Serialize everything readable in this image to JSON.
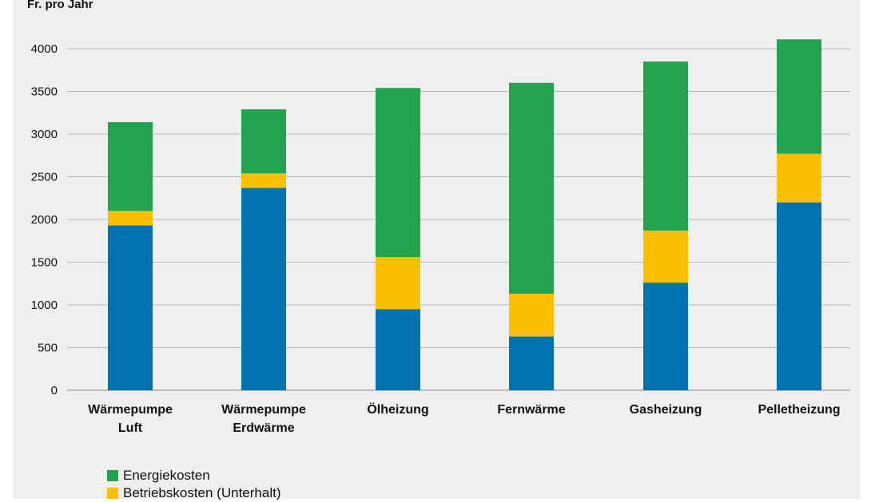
{
  "chart_data": {
    "type": "bar",
    "stacked": true,
    "ylabel": "Fr. pro Jahr",
    "xlabel": "",
    "ylim": [
      0,
      4300
    ],
    "yticks": [
      0,
      500,
      1000,
      1500,
      2000,
      2500,
      3000,
      3500,
      4000
    ],
    "grid": true,
    "legend_position": "bottom-left",
    "categories": [
      [
        "Wärmepumpe",
        "Luft"
      ],
      [
        "Wärmepumpe",
        "Erdwärme"
      ],
      [
        "Ölheizung"
      ],
      [
        "Fernwärme"
      ],
      [
        "Gasheizung"
      ],
      [
        "Pelletheizung"
      ]
    ],
    "series": [
      {
        "key": "kapital",
        "name": "",
        "color": "#0072b2",
        "values": [
          1930,
          2370,
          950,
          630,
          1260,
          2200
        ]
      },
      {
        "key": "betrieb",
        "name": "Betriebskosten (Unterhalt)",
        "color": "#fdc000",
        "values": [
          170,
          170,
          610,
          500,
          610,
          570
        ]
      },
      {
        "key": "energie",
        "name": "Energiekosten",
        "color": "#23a34e",
        "values": [
          1040,
          750,
          1980,
          2470,
          1980,
          1340
        ]
      }
    ],
    "legend": [
      {
        "label": "Energiekosten",
        "color": "#23a34e"
      },
      {
        "label": "Betriebskosten (Unterhalt)",
        "color": "#fdc000"
      }
    ]
  }
}
